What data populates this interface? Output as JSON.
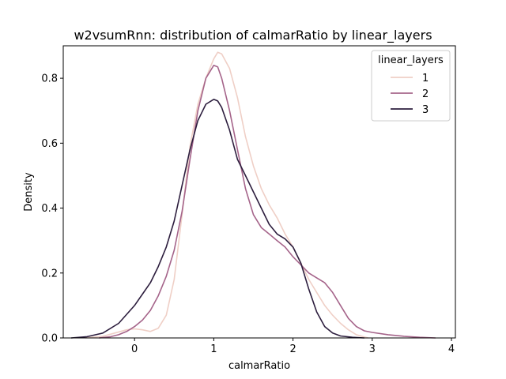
{
  "chart_data": {
    "type": "line",
    "title": "w2vsumRnn: distribution of calmarRatio by linear_layers",
    "xlabel": "calmarRatio",
    "ylabel": "Density",
    "xlim": [
      -0.9,
      4.05
    ],
    "ylim": [
      0,
      0.9
    ],
    "xticks": [
      "0",
      "1",
      "2",
      "3",
      "4"
    ],
    "xtick_values": [
      0,
      1,
      2,
      3,
      4
    ],
    "yticks": [
      "0.0",
      "0.2",
      "0.4",
      "0.6",
      "0.8"
    ],
    "ytick_values": [
      0,
      0.2,
      0.4,
      0.6,
      0.8
    ],
    "grid": false,
    "legend": {
      "title": "linear_layers",
      "placement": "top-right"
    },
    "series": [
      {
        "name": "1",
        "color": "#efcfc6",
        "points": [
          [
            -0.62,
            0.0
          ],
          [
            -0.4,
            0.005
          ],
          [
            -0.25,
            0.015
          ],
          [
            -0.1,
            0.025
          ],
          [
            0.0,
            0.028
          ],
          [
            0.1,
            0.025
          ],
          [
            0.2,
            0.02
          ],
          [
            0.3,
            0.03
          ],
          [
            0.4,
            0.07
          ],
          [
            0.5,
            0.18
          ],
          [
            0.6,
            0.38
          ],
          [
            0.7,
            0.59
          ],
          [
            0.8,
            0.72
          ],
          [
            0.9,
            0.8
          ],
          [
            1.0,
            0.86
          ],
          [
            1.05,
            0.88
          ],
          [
            1.1,
            0.875
          ],
          [
            1.2,
            0.83
          ],
          [
            1.3,
            0.74
          ],
          [
            1.4,
            0.62
          ],
          [
            1.5,
            0.53
          ],
          [
            1.6,
            0.46
          ],
          [
            1.7,
            0.41
          ],
          [
            1.8,
            0.37
          ],
          [
            1.9,
            0.32
          ],
          [
            2.0,
            0.28
          ],
          [
            2.1,
            0.23
          ],
          [
            2.2,
            0.18
          ],
          [
            2.3,
            0.14
          ],
          [
            2.4,
            0.1
          ],
          [
            2.5,
            0.07
          ],
          [
            2.6,
            0.045
          ],
          [
            2.7,
            0.025
          ],
          [
            2.8,
            0.01
          ],
          [
            2.9,
            0.003
          ],
          [
            2.95,
            0.0
          ]
        ]
      },
      {
        "name": "2",
        "color": "#a5648a",
        "points": [
          [
            -0.45,
            0.0
          ],
          [
            -0.3,
            0.004
          ],
          [
            -0.2,
            0.01
          ],
          [
            -0.1,
            0.02
          ],
          [
            0.0,
            0.035
          ],
          [
            0.1,
            0.055
          ],
          [
            0.2,
            0.085
          ],
          [
            0.3,
            0.13
          ],
          [
            0.4,
            0.19
          ],
          [
            0.5,
            0.27
          ],
          [
            0.6,
            0.39
          ],
          [
            0.7,
            0.55
          ],
          [
            0.8,
            0.7
          ],
          [
            0.9,
            0.8
          ],
          [
            1.0,
            0.84
          ],
          [
            1.05,
            0.835
          ],
          [
            1.1,
            0.8
          ],
          [
            1.2,
            0.7
          ],
          [
            1.3,
            0.58
          ],
          [
            1.4,
            0.46
          ],
          [
            1.5,
            0.38
          ],
          [
            1.6,
            0.34
          ],
          [
            1.7,
            0.32
          ],
          [
            1.8,
            0.3
          ],
          [
            1.9,
            0.28
          ],
          [
            2.0,
            0.25
          ],
          [
            2.1,
            0.225
          ],
          [
            2.2,
            0.2
          ],
          [
            2.3,
            0.185
          ],
          [
            2.4,
            0.17
          ],
          [
            2.5,
            0.14
          ],
          [
            2.6,
            0.1
          ],
          [
            2.7,
            0.06
          ],
          [
            2.8,
            0.035
          ],
          [
            2.9,
            0.022
          ],
          [
            3.0,
            0.017
          ],
          [
            3.2,
            0.01
          ],
          [
            3.4,
            0.005
          ],
          [
            3.6,
            0.002
          ],
          [
            3.8,
            0.0
          ]
        ]
      },
      {
        "name": "3",
        "color": "#2d1e3e",
        "points": [
          [
            -0.8,
            0.0
          ],
          [
            -0.6,
            0.004
          ],
          [
            -0.4,
            0.015
          ],
          [
            -0.2,
            0.045
          ],
          [
            0.0,
            0.1
          ],
          [
            0.1,
            0.135
          ],
          [
            0.2,
            0.17
          ],
          [
            0.3,
            0.22
          ],
          [
            0.4,
            0.28
          ],
          [
            0.5,
            0.36
          ],
          [
            0.6,
            0.47
          ],
          [
            0.7,
            0.58
          ],
          [
            0.8,
            0.67
          ],
          [
            0.9,
            0.72
          ],
          [
            1.0,
            0.735
          ],
          [
            1.05,
            0.73
          ],
          [
            1.1,
            0.71
          ],
          [
            1.2,
            0.64
          ],
          [
            1.3,
            0.55
          ],
          [
            1.4,
            0.5
          ],
          [
            1.5,
            0.45
          ],
          [
            1.6,
            0.4
          ],
          [
            1.7,
            0.35
          ],
          [
            1.8,
            0.32
          ],
          [
            1.9,
            0.305
          ],
          [
            2.0,
            0.28
          ],
          [
            2.1,
            0.23
          ],
          [
            2.2,
            0.15
          ],
          [
            2.3,
            0.08
          ],
          [
            2.4,
            0.035
          ],
          [
            2.5,
            0.015
          ],
          [
            2.6,
            0.006
          ],
          [
            2.75,
            0.002
          ],
          [
            2.9,
            0.0
          ]
        ]
      }
    ]
  }
}
